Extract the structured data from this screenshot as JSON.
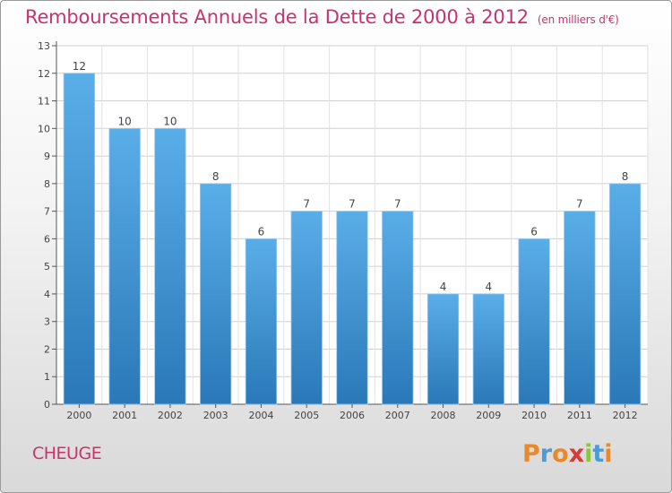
{
  "chart_data": {
    "type": "bar",
    "title": "Remboursements Annuels de la Dette de 2000 à 2012",
    "subtitle": "(en milliers d'€)",
    "categories": [
      "2000",
      "2001",
      "2002",
      "2003",
      "2004",
      "2005",
      "2006",
      "2007",
      "2008",
      "2009",
      "2010",
      "2011",
      "2012"
    ],
    "values": [
      12,
      10,
      10,
      8,
      6,
      7,
      7,
      7,
      4,
      4,
      6,
      7,
      8
    ],
    "ylim": [
      0,
      13
    ],
    "yticks": [
      "0",
      "1",
      "2",
      "3",
      "4",
      "5",
      "6",
      "7",
      "8",
      "9",
      "10",
      "11",
      "12",
      "13"
    ],
    "grid": true,
    "bar_color": "#3a8fd6"
  },
  "place": "CHEUGE",
  "logo": {
    "letters": [
      "P",
      "r",
      "o",
      "x",
      "i",
      "t",
      "i"
    ],
    "colors": [
      "#e8892b",
      "#4a9bd8",
      "#e8892b",
      "#d43b3b",
      "#8cc63f",
      "#4a9bd8",
      "#e8892b"
    ]
  }
}
